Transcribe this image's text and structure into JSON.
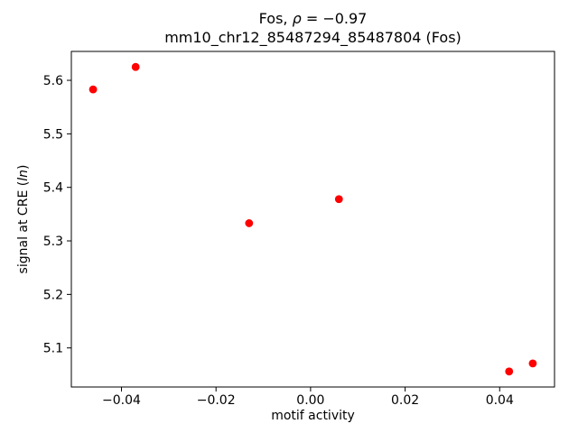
{
  "chart_data": {
    "type": "scatter",
    "title_segments": [
      {
        "t": "Fos, ",
        "i": false
      },
      {
        "t": "ρ",
        "i": true
      },
      {
        "t": " = −0.97",
        "i": false
      }
    ],
    "subtitle": "mm10_chr12_85487294_85487804 (Fos)",
    "xlabel": "motif activity",
    "ylabel_segments": [
      {
        "t": "signal at CRE (",
        "i": false
      },
      {
        "t": "ln",
        "i": true
      },
      {
        "t": ")",
        "i": false
      }
    ],
    "x": [
      -0.046,
      -0.037,
      -0.013,
      0.006,
      0.042,
      0.047
    ],
    "y": [
      5.583,
      5.625,
      5.333,
      5.378,
      5.056,
      5.071
    ],
    "point_color": "#ff0000",
    "marker_radius": 4.4,
    "xlim": [
      -0.0506,
      0.0516
    ],
    "ylim": [
      5.027,
      5.654
    ],
    "xticks": {
      "values": [
        -0.04,
        -0.02,
        0.0,
        0.02,
        0.04
      ],
      "labels": [
        "−0.04",
        "−0.02",
        "0.00",
        "0.02",
        "0.04"
      ]
    },
    "yticks": {
      "values": [
        5.1,
        5.2,
        5.3,
        5.4,
        5.5,
        5.6
      ],
      "labels": [
        "5.1",
        "5.2",
        "5.3",
        "5.4",
        "5.5",
        "5.6"
      ]
    },
    "grid": false,
    "background": "#ffffff",
    "frame_color": "#000000"
  }
}
